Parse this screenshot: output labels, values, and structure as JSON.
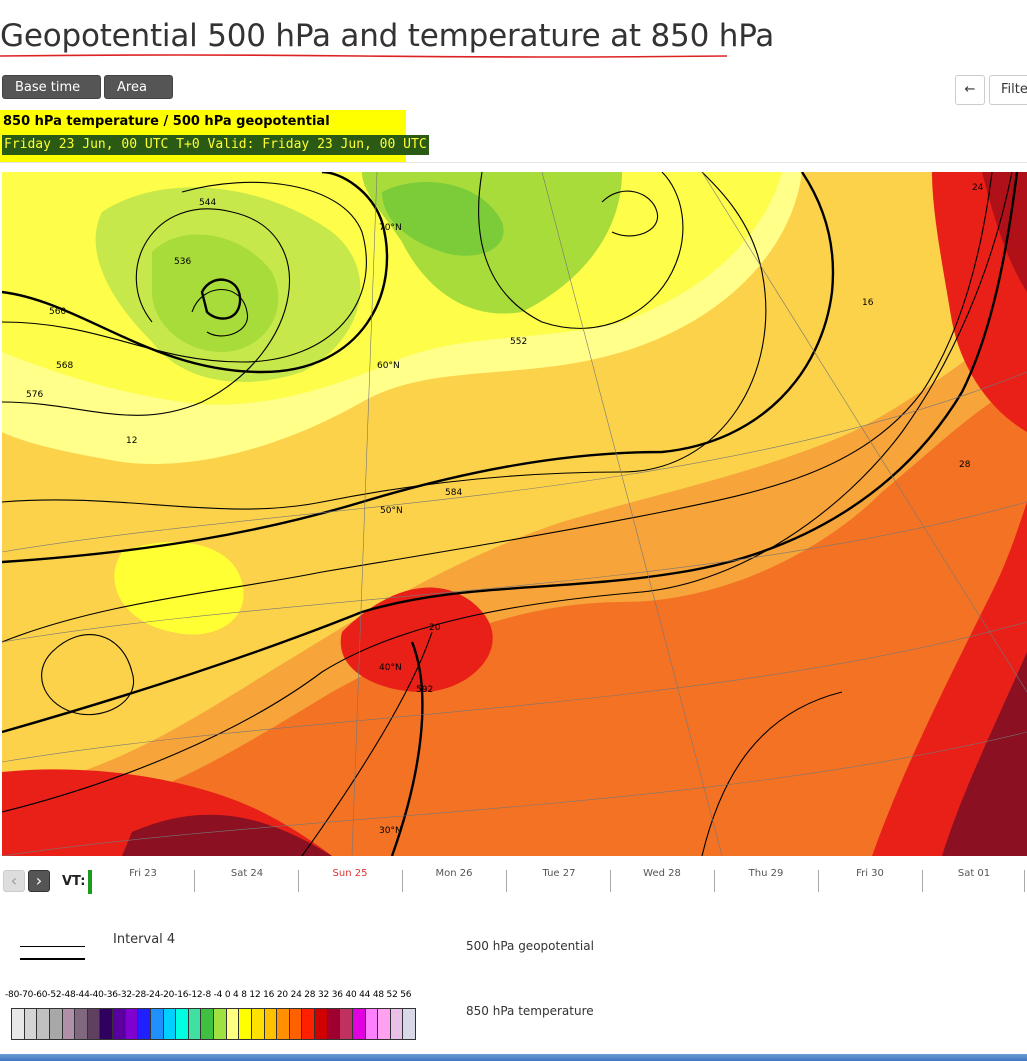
{
  "page": {
    "title": "Geopotential 500 hPa and temperature at 850 hPa"
  },
  "toolbar": {
    "base_time_label": "Base time",
    "area_label": "Area",
    "back_label": "←",
    "filter_label": "Filte"
  },
  "info": {
    "line1": "850 hPa temperature / 500 hPa geopotential",
    "line2": "Friday 23 Jun, 00 UTC T+0 Valid: Friday 23 Jun, 00 UTC"
  },
  "map": {
    "labels": [
      "544",
      "536",
      "552",
      "560",
      "568",
      "576",
      "584",
      "592",
      "12",
      "16",
      "20",
      "24",
      "28",
      "70°N",
      "60°N",
      "50°N",
      "40°N",
      "30°N"
    ]
  },
  "timeline": {
    "vt_label": "VT:",
    "prev_icon": "chevron-left-icon",
    "next_icon": "chevron-right-icon",
    "days": [
      {
        "label": "Fri 23"
      },
      {
        "label": "Sat 24"
      },
      {
        "label": "Sun 25"
      },
      {
        "label": "Mon 26"
      },
      {
        "label": "Tue 27"
      },
      {
        "label": "Wed 28"
      },
      {
        "label": "Thu 29"
      },
      {
        "label": "Fri 30"
      },
      {
        "label": "Sat 01"
      }
    ],
    "highlighted_day": "Sun 25"
  },
  "legend": {
    "interval_label": "Interval 4",
    "geopotential_label": "500 hPa geopotential",
    "temperature_label": "850 hPa temperature",
    "scale_values": "-80-70-60-52-48-44-40-36-32-28-24-20-16-12-8  -4  0   4   8  12 16 20 24 28 32 36 40 44 48 52 56",
    "scale_colors": [
      "#e8e8e8",
      "#d4d4d4",
      "#c0c0c0",
      "#a8a8a8",
      "#b090a8",
      "#806880",
      "#604060",
      "#300060",
      "#5a00a0",
      "#8000d0",
      "#2020ff",
      "#2090ff",
      "#00d0ff",
      "#00ffe0",
      "#40e0a0",
      "#40c040",
      "#a0e040",
      "#ffff80",
      "#ffff00",
      "#ffe000",
      "#ffc000",
      "#ff9000",
      "#ff6000",
      "#ff2000",
      "#d00000",
      "#a00030",
      "#c03060",
      "#e000e0",
      "#ff80ff",
      "#ffa0f0",
      "#e8c0e8",
      "#d8d8e8"
    ]
  }
}
